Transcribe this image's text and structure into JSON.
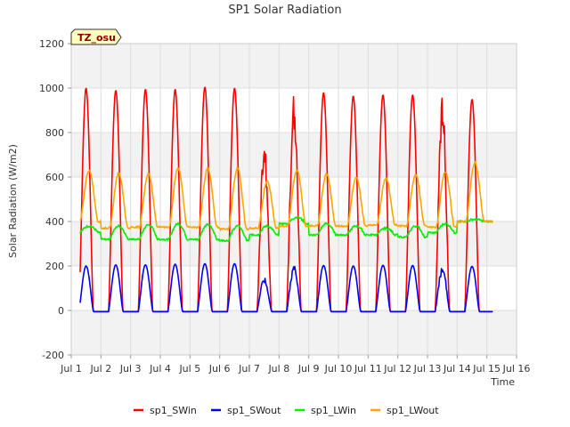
{
  "chart_data": {
    "type": "line",
    "title": "SP1 Solar Radiation",
    "xlabel": "Time",
    "ylabel": "Solar Radiation (W/m2)",
    "site_label": "TZ_osu",
    "xlim": [
      1,
      16
    ],
    "ylim": [
      -200,
      1200
    ],
    "x_ticks": [
      {
        "value": 1,
        "label": "Jul 1"
      },
      {
        "value": 2,
        "label": "Jul 2"
      },
      {
        "value": 3,
        "label": "Jul 3"
      },
      {
        "value": 4,
        "label": "Jul 4"
      },
      {
        "value": 5,
        "label": "Jul 5"
      },
      {
        "value": 6,
        "label": "Jul 6"
      },
      {
        "value": 7,
        "label": "Jul 7"
      },
      {
        "value": 8,
        "label": "Jul 8"
      },
      {
        "value": 9,
        "label": "Jul 9"
      },
      {
        "value": 10,
        "label": "Jul 10"
      },
      {
        "value": 11,
        "label": "Jul 11"
      },
      {
        "value": 12,
        "label": "Jul 12"
      },
      {
        "value": 13,
        "label": "Jul 13"
      },
      {
        "value": 14,
        "label": "Jul 14"
      },
      {
        "value": 15,
        "label": "Jul 15"
      },
      {
        "value": 16,
        "label": "Jul 16"
      }
    ],
    "y_ticks": [
      -200,
      0,
      200,
      400,
      600,
      800,
      1000,
      1200
    ],
    "grid": true,
    "legend_position": "bottom",
    "series": [
      {
        "name": "sp1_SWin",
        "color": "#ff0000",
        "daily_peak": [
          1000,
          990,
          995,
          995,
          1005,
          1000,
          780,
          975,
          980,
          965,
          970,
          970,
          980,
          950
        ],
        "night_value": -5
      },
      {
        "name": "sp1_SWout",
        "color": "#0000ff",
        "daily_peak": [
          200,
          205,
          205,
          208,
          210,
          210,
          150,
          205,
          202,
          200,
          203,
          202,
          200,
          198
        ],
        "night_value": -5
      },
      {
        "name": "sp1_LWin",
        "color": "#00ee00",
        "daily_base": [
          350,
          320,
          320,
          320,
          320,
          315,
          340,
          390,
          340,
          340,
          340,
          330,
          350,
          400
        ],
        "daily_peak": [
          380,
          380,
          385,
          390,
          385,
          380,
          380,
          420,
          390,
          380,
          370,
          380,
          390,
          410
        ]
      },
      {
        "name": "sp1_LWout",
        "color": "#ffa500",
        "daily_base": [
          400,
          370,
          375,
          375,
          375,
          365,
          370,
          380,
          380,
          380,
          385,
          380,
          375,
          400
        ],
        "daily_peak": [
          630,
          620,
          615,
          640,
          640,
          640,
          580,
          630,
          615,
          595,
          595,
          610,
          625,
          665
        ]
      }
    ]
  }
}
